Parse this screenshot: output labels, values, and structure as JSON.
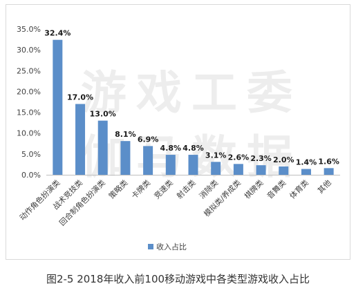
{
  "chart_data": {
    "type": "bar",
    "categories": [
      "动作角色扮演类",
      "战术竞技类",
      "回合制角色扮演类",
      "策略类",
      "卡牌类",
      "竞速类",
      "射击类",
      "消除类",
      "模拟类/养成类",
      "棋牌类",
      "音舞类",
      "体育类",
      "其他"
    ],
    "series": [
      {
        "name": "收入占比",
        "values": [
          32.4,
          17.0,
          13.0,
          8.1,
          6.9,
          4.8,
          4.8,
          3.1,
          2.6,
          2.3,
          2.0,
          1.4,
          1.6
        ]
      }
    ],
    "data_labels": [
      "32.4%",
      "17.0%",
      "13.0%",
      "8.1%",
      "6.9%",
      "4.8%",
      "4.8%",
      "3.1%",
      "2.6%",
      "2.3%",
      "2.0%",
      "1.4%",
      "1.6%"
    ],
    "ytick_labels": [
      "0.0%",
      "5.0%",
      "10.0%",
      "15.0%",
      "20.0%",
      "25.0%",
      "30.0%",
      "35.0%"
    ],
    "yticks": [
      0,
      5,
      10,
      15,
      20,
      25,
      30,
      35
    ],
    "ylim": [
      0,
      35
    ],
    "grid": false,
    "legend_position": "bottom-left",
    "bar_color": "#5b8ec9"
  },
  "caption": "图2-5 2018年收入前100移动游戏中各类型游戏收入占比",
  "watermark": {
    "line1": "游戏工委",
    "line2": "伽马数据"
  }
}
